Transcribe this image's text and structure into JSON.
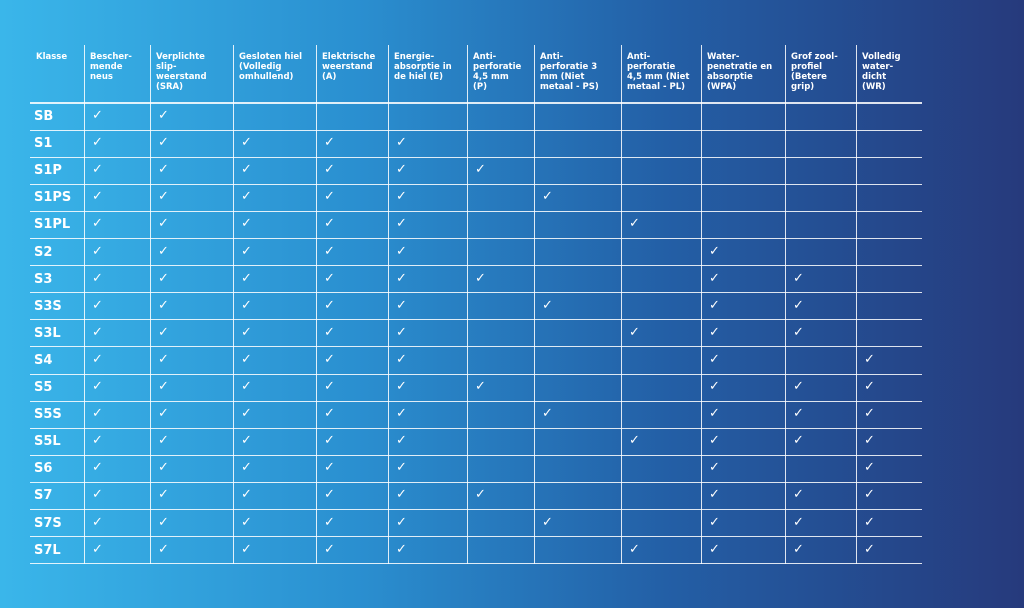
{
  "table": {
    "header": [
      "Klasse",
      "Bescher-\nmende\nneus",
      "Verplichte\nslip-\nweerstand\n(SRA)",
      "Gesloten hiel\n(Volledig\nomhullend)",
      "Elektrische\nweerstand\n(A)",
      "Energie-\nabsorptie in\nde hiel (E)",
      "Anti-\nperforatie\n4,5 mm\n(P)",
      "Anti-\nperforatie 3\nmm (Niet\nmetaal - PS)",
      "Anti-\nperforatie\n4,5 mm (Niet\nmetaal - PL)",
      "Water-\npenetratie en\nabsorptie\n(WPA)",
      "Grof zool-\nprofiel\n(Betere\ngrip)",
      "Volledig\nwater-\ndicht\n(WR)"
    ],
    "rows": [
      [
        "SB",
        "✓",
        "✓",
        null,
        null,
        null,
        null,
        null,
        null,
        null,
        null,
        null
      ],
      [
        "S1",
        "✓",
        "✓",
        "✓",
        "✓",
        "✓",
        null,
        null,
        null,
        null,
        null,
        null
      ],
      [
        "S1P",
        "✓",
        "✓",
        "✓",
        "✓",
        "✓",
        "✓",
        null,
        null,
        null,
        null,
        null
      ],
      [
        "S1PS",
        "✓",
        "✓",
        "✓",
        "✓",
        "✓",
        null,
        "✓",
        null,
        null,
        null,
        null
      ],
      [
        "S1PL",
        "✓",
        "✓",
        "✓",
        "✓",
        "✓",
        null,
        null,
        "✓",
        null,
        null,
        null
      ],
      [
        "S2",
        "✓",
        "✓",
        "✓",
        "✓",
        "✓",
        null,
        null,
        null,
        "✓",
        null,
        null
      ],
      [
        "S3",
        "✓",
        "✓",
        "✓",
        "✓",
        "✓",
        "✓",
        null,
        null,
        "✓",
        "✓",
        null
      ],
      [
        "S3S",
        "✓",
        "✓",
        "✓",
        "✓",
        "✓",
        null,
        "✓",
        null,
        "✓",
        "✓",
        null
      ],
      [
        "S3L",
        "✓",
        "✓",
        "✓",
        "✓",
        "✓",
        null,
        null,
        "✓",
        "✓",
        "✓",
        null
      ],
      [
        "S4",
        "✓",
        "✓",
        "✓",
        "✓",
        "✓",
        null,
        null,
        null,
        "✓",
        null,
        "✓"
      ],
      [
        "S5",
        "✓",
        "✓",
        "✓",
        "✓",
        "✓",
        "✓",
        null,
        null,
        "✓",
        "✓",
        "✓"
      ],
      [
        "S5S",
        "✓",
        "✓",
        "✓",
        "✓",
        "✓",
        null,
        "✓",
        null,
        "✓",
        "✓",
        "✓"
      ],
      [
        "S5L",
        "✓",
        "✓",
        "✓",
        "✓",
        "✓",
        null,
        null,
        "✓",
        "✓",
        "✓",
        "✓"
      ],
      [
        "S6",
        "✓",
        "✓",
        "✓",
        "✓",
        "✓",
        null,
        null,
        null,
        "✓",
        null,
        "✓"
      ],
      [
        "S7",
        "✓",
        "✓",
        "✓",
        "✓",
        "✓",
        "✓",
        null,
        null,
        "✓",
        "✓",
        "✓"
      ],
      [
        "S7S",
        "✓",
        "✓",
        "✓",
        "✓",
        "✓",
        null,
        "✓",
        null,
        "✓",
        "✓",
        "✓"
      ],
      [
        "S7L",
        "✓",
        "✓",
        "✓",
        "✓",
        "✓",
        null,
        null,
        "✓",
        "✓",
        "✓",
        "✓"
      ]
    ]
  }
}
